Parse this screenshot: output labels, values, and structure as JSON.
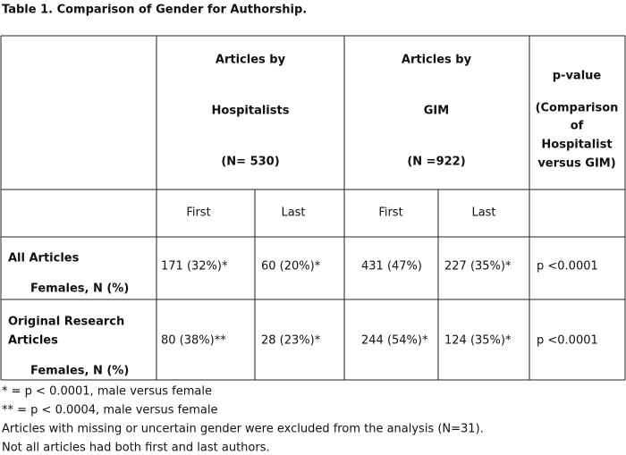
{
  "title": "Table 1.  Comparison of Gender for Authorship.",
  "table": {
    "column_groups": [
      {
        "lines": [
          "Articles by",
          "Hospitalists",
          "(N= 530)"
        ]
      },
      {
        "lines": [
          "Articles by",
          "GIM",
          "(N =922)"
        ]
      },
      {
        "lines": [
          "p-value",
          "(Comparison",
          "of",
          "Hospitalist",
          "versus GIM)"
        ]
      }
    ],
    "subheaders": [
      "First",
      "Last",
      "First",
      "Last"
    ],
    "rows": [
      {
        "label": [
          "All Articles"
        ],
        "sublabel": "Females, N (%)",
        "cells": [
          "171 (32%)*",
          "60 (20%)*",
          "431 (47%)",
          "227 (35%)*",
          "p <0.0001"
        ]
      },
      {
        "label": [
          "Original Research",
          "Articles"
        ],
        "sublabel": "Females, N (%)",
        "cells": [
          "80 (38%)**",
          "28 (23%)*",
          "244 (54%)*",
          "124 (35%)*",
          "p <0.0001"
        ]
      }
    ]
  },
  "footnotes": [
    "* = p < 0.0001, male versus female",
    "** = p < 0.0004, male versus female",
    "Articles with missing or uncertain gender were excluded from the analysis (N=31).",
    "Not all articles had both first and last authors."
  ]
}
